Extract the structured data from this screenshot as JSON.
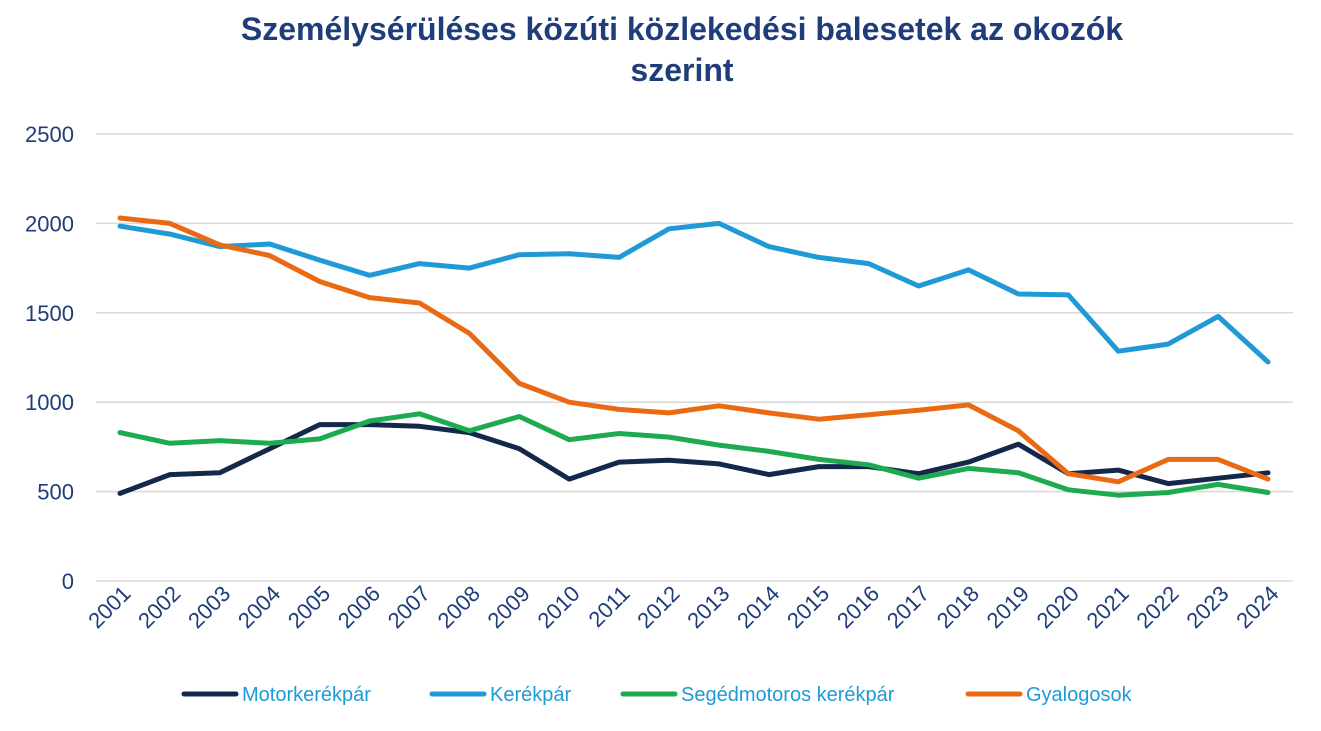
{
  "chart_data": {
    "type": "line",
    "title_lines": [
      "Személysérüléses közúti közlekedési balesetek az okozók",
      "szerint"
    ],
    "x": [
      "2001",
      "2002",
      "2003",
      "2004",
      "2005",
      "2006",
      "2007",
      "2008",
      "2009",
      "2010",
      "2011",
      "2012",
      "2013",
      "2014",
      "2015",
      "2016",
      "2017",
      "2018",
      "2019",
      "2020",
      "2021",
      "2022",
      "2023",
      "2024"
    ],
    "ylim": [
      0,
      2500
    ],
    "yticks": [
      "0",
      "500",
      "1000",
      "1500",
      "2000",
      "2500"
    ],
    "grid": true,
    "legend_position": "bottom",
    "series": [
      {
        "name": "Motorkerékpár",
        "color": "#14284b",
        "values": [
          490,
          595,
          605,
          740,
          875,
          875,
          865,
          830,
          740,
          570,
          665,
          675,
          655,
          595,
          640,
          640,
          600,
          665,
          765,
          600,
          620,
          545,
          575,
          605
        ]
      },
      {
        "name": "Kerékpár",
        "color": "#1f9ad6",
        "values": [
          1985,
          1940,
          1870,
          1885,
          1795,
          1710,
          1775,
          1750,
          1825,
          1830,
          1810,
          1970,
          2000,
          1870,
          1810,
          1775,
          1650,
          1740,
          1605,
          1600,
          1285,
          1325,
          1480,
          1225
        ]
      },
      {
        "name": "Segédmotoros kerékpár",
        "color": "#1eaa4f",
        "values": [
          830,
          770,
          785,
          770,
          795,
          895,
          935,
          840,
          920,
          790,
          825,
          805,
          760,
          725,
          680,
          650,
          575,
          630,
          605,
          510,
          480,
          495,
          540,
          495
        ]
      },
      {
        "name": "Gyalogosok",
        "color": "#ea6a14",
        "values": [
          2030,
          2000,
          1880,
          1820,
          1675,
          1585,
          1555,
          1385,
          1105,
          1000,
          960,
          940,
          980,
          940,
          905,
          930,
          955,
          985,
          840,
          600,
          555,
          680,
          680,
          570
        ]
      }
    ]
  }
}
